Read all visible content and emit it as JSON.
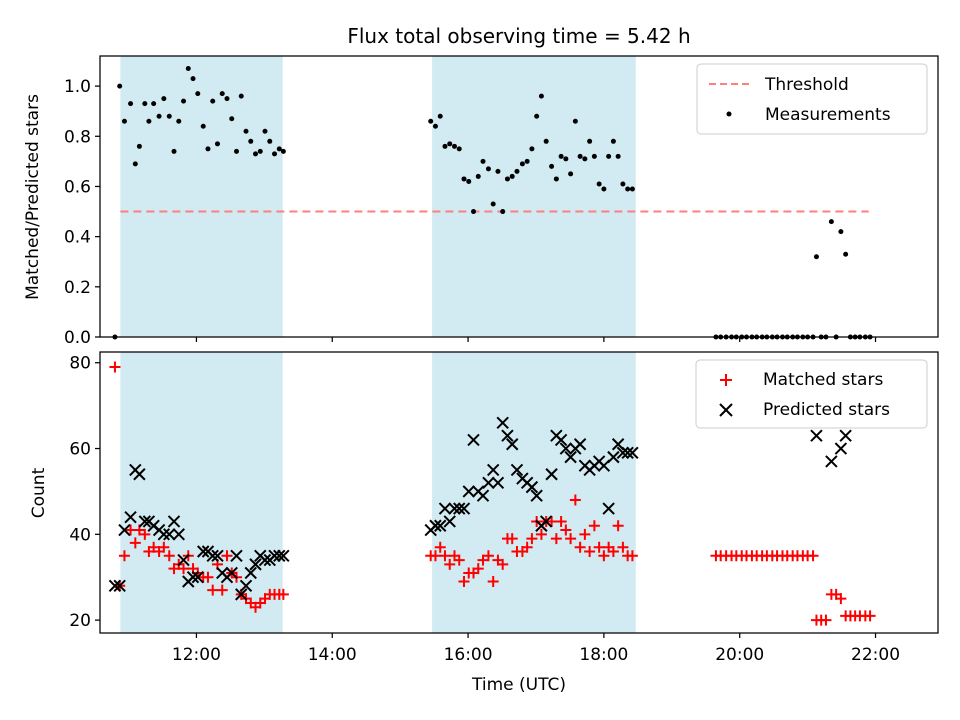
{
  "figure": {
    "title": "Flux total observing time = 5.42 h"
  },
  "chart_data": [
    {
      "type": "scatter",
      "panel": "top",
      "title": "Flux total observing time = 5.42 h",
      "xlabel": "",
      "ylabel": "Matched/Predicted stars",
      "xlim_hours": [
        10.58,
        22.92
      ],
      "ylim": [
        0,
        1.12
      ],
      "yticks": [
        0.0,
        0.2,
        0.4,
        0.6,
        0.8,
        1.0
      ],
      "ytick_labels": [
        "0.0",
        "0.2",
        "0.4",
        "0.6",
        "0.8",
        "1.0"
      ],
      "xticks_hours": [
        12,
        14,
        16,
        18,
        20,
        22
      ],
      "shaded_intervals_hours": [
        [
          10.88,
          13.27
        ],
        [
          15.47,
          18.47
        ]
      ],
      "shade_color": "#add8e6",
      "grid": false,
      "legend": {
        "placement": "top-right",
        "entries": [
          "Threshold",
          "Measurements"
        ]
      },
      "threshold": {
        "name": "Threshold",
        "y": 0.5,
        "x_range_hours": [
          10.88,
          21.9
        ],
        "color": "#ff7f7f",
        "style": "dashed"
      },
      "series": [
        {
          "name": "Measurements",
          "color": "#000000",
          "marker": "dot",
          "x_hours": [
            10.8,
            10.87,
            10.94,
            11.03,
            11.1,
            11.16,
            11.24,
            11.3,
            11.37,
            11.45,
            11.52,
            11.6,
            11.67,
            11.74,
            11.81,
            11.88,
            11.95,
            12.02,
            12.1,
            12.17,
            12.24,
            12.31,
            12.38,
            12.45,
            12.52,
            12.59,
            12.66,
            12.73,
            12.8,
            12.87,
            12.94,
            13.01,
            13.08,
            13.15,
            13.22,
            13.28,
            15.45,
            15.52,
            15.59,
            15.66,
            15.73,
            15.8,
            15.87,
            15.94,
            16.01,
            16.08,
            16.15,
            16.22,
            16.3,
            16.37,
            16.44,
            16.51,
            16.58,
            16.65,
            16.72,
            16.8,
            16.87,
            16.94,
            17.01,
            17.08,
            17.15,
            17.23,
            17.3,
            17.37,
            17.44,
            17.51,
            17.58,
            17.65,
            17.72,
            17.79,
            17.86,
            17.93,
            18.0,
            18.07,
            18.14,
            18.21,
            18.28,
            18.35,
            18.42,
            19.65,
            19.72,
            19.8,
            19.88,
            19.95,
            20.03,
            20.1,
            20.18,
            20.25,
            20.33,
            20.4,
            20.48,
            20.55,
            20.63,
            20.7,
            20.78,
            20.85,
            20.93,
            21.0,
            21.08,
            21.13,
            21.2,
            21.27,
            21.35,
            21.42,
            21.49,
            21.56,
            21.63,
            21.7,
            21.77,
            21.85,
            21.92
          ],
          "y": [
            0.0,
            1.0,
            0.86,
            0.93,
            0.69,
            0.76,
            0.93,
            0.86,
            0.93,
            0.88,
            0.95,
            0.88,
            0.74,
            0.86,
            0.94,
            1.07,
            1.03,
            0.97,
            0.84,
            0.75,
            0.94,
            0.77,
            0.97,
            0.95,
            0.87,
            0.74,
            0.96,
            0.82,
            0.78,
            0.73,
            0.74,
            0.82,
            0.78,
            0.73,
            0.75,
            0.74,
            0.86,
            0.84,
            0.88,
            0.76,
            0.77,
            0.76,
            0.75,
            0.63,
            0.62,
            0.5,
            0.64,
            0.7,
            0.67,
            0.53,
            0.66,
            0.5,
            0.63,
            0.64,
            0.66,
            0.69,
            0.7,
            0.75,
            0.88,
            0.96,
            0.78,
            0.68,
            0.63,
            0.72,
            0.71,
            0.65,
            0.86,
            0.72,
            0.71,
            0.78,
            0.72,
            0.61,
            0.59,
            0.72,
            0.78,
            0.72,
            0.61,
            0.59,
            0.59,
            0.0,
            0.0,
            0.0,
            0.0,
            0.0,
            0.0,
            0.0,
            0.0,
            0.0,
            0.0,
            0.0,
            0.0,
            0.0,
            0.0,
            0.0,
            0.0,
            0.0,
            0.0,
            0.0,
            0.0,
            0.32,
            0.0,
            0.0,
            0.46,
            0.0,
            0.42,
            0.33,
            0.0,
            0.0,
            0.0,
            0.0,
            0.0
          ]
        }
      ]
    },
    {
      "type": "scatter",
      "panel": "bottom",
      "title": "",
      "xlabel": "Time (UTC)",
      "ylabel": "Count",
      "xlim_hours": [
        10.58,
        22.92
      ],
      "ylim": [
        17,
        82.5
      ],
      "yticks": [
        20,
        40,
        60,
        80
      ],
      "ytick_labels": [
        "20",
        "40",
        "60",
        "80"
      ],
      "xticks_hours": [
        12,
        14,
        16,
        18,
        20,
        22
      ],
      "xtick_labels": [
        "12:00",
        "14:00",
        "16:00",
        "18:00",
        "20:00",
        "22:00"
      ],
      "shaded_intervals_hours": [
        [
          10.88,
          13.27
        ],
        [
          15.47,
          18.47
        ]
      ],
      "shade_color": "#add8e6",
      "grid": false,
      "legend": {
        "placement": "top-right",
        "entries": [
          "Matched stars",
          "Predicted stars"
        ]
      },
      "series": [
        {
          "name": "Matched stars",
          "color": "#ff0000",
          "marker": "plus",
          "x_hours": [
            10.8,
            10.87,
            10.94,
            11.03,
            11.1,
            11.16,
            11.24,
            11.3,
            11.37,
            11.45,
            11.52,
            11.6,
            11.67,
            11.74,
            11.81,
            11.88,
            11.95,
            12.02,
            12.1,
            12.17,
            12.24,
            12.31,
            12.38,
            12.45,
            12.52,
            12.59,
            12.66,
            12.73,
            12.8,
            12.87,
            12.94,
            13.01,
            13.08,
            13.15,
            13.22,
            13.28,
            15.45,
            15.52,
            15.59,
            15.66,
            15.73,
            15.8,
            15.87,
            15.94,
            16.01,
            16.08,
            16.15,
            16.22,
            16.3,
            16.37,
            16.44,
            16.51,
            16.58,
            16.65,
            16.72,
            16.8,
            16.87,
            16.94,
            17.01,
            17.08,
            17.15,
            17.23,
            17.3,
            17.37,
            17.44,
            17.51,
            17.58,
            17.65,
            17.72,
            17.79,
            17.86,
            17.93,
            18.0,
            18.07,
            18.14,
            18.21,
            18.28,
            18.35,
            18.42,
            19.65,
            19.72,
            19.8,
            19.88,
            19.95,
            20.03,
            20.1,
            20.18,
            20.25,
            20.33,
            20.4,
            20.48,
            20.55,
            20.63,
            20.7,
            20.78,
            20.85,
            20.93,
            21.0,
            21.08,
            21.13,
            21.2,
            21.27,
            21.35,
            21.42,
            21.49,
            21.56,
            21.63,
            21.7,
            21.77,
            21.85,
            21.92
          ],
          "y": [
            79,
            28,
            35,
            41,
            38,
            41,
            40,
            36,
            37,
            36,
            37,
            35,
            32,
            33,
            32,
            35,
            32,
            31,
            30,
            30,
            27,
            33,
            27,
            35,
            31,
            30,
            26,
            25,
            24,
            23,
            24,
            25,
            26,
            26,
            26,
            26,
            35,
            35,
            37,
            35,
            33,
            35,
            34,
            29,
            31,
            31,
            32,
            34,
            35,
            29,
            34,
            33,
            39,
            39,
            36,
            36,
            37,
            39,
            43,
            40,
            43,
            43,
            39,
            43,
            41,
            39,
            48,
            37,
            40,
            36,
            42,
            37,
            35,
            37,
            36,
            42,
            37,
            35,
            35,
            35,
            35,
            35,
            35,
            35,
            35,
            35,
            35,
            35,
            35,
            35,
            35,
            35,
            35,
            35,
            35,
            35,
            35,
            35,
            35,
            20,
            20,
            20,
            26,
            26,
            25,
            21,
            21,
            21,
            21,
            21,
            21
          ]
        },
        {
          "name": "Predicted stars",
          "color": "#000000",
          "marker": "x",
          "x_hours": [
            10.8,
            10.87,
            10.94,
            11.03,
            11.1,
            11.16,
            11.24,
            11.3,
            11.37,
            11.45,
            11.52,
            11.6,
            11.67,
            11.74,
            11.81,
            11.88,
            11.95,
            12.02,
            12.1,
            12.17,
            12.24,
            12.31,
            12.38,
            12.45,
            12.52,
            12.59,
            12.66,
            12.73,
            12.8,
            12.87,
            12.94,
            13.01,
            13.08,
            13.15,
            13.22,
            13.28,
            15.45,
            15.52,
            15.59,
            15.66,
            15.73,
            15.8,
            15.87,
            15.94,
            16.01,
            16.08,
            16.15,
            16.22,
            16.3,
            16.37,
            16.44,
            16.51,
            16.58,
            16.65,
            16.72,
            16.8,
            16.87,
            16.94,
            17.01,
            17.08,
            17.15,
            17.23,
            17.3,
            17.37,
            17.44,
            17.51,
            17.58,
            17.65,
            17.72,
            17.79,
            17.86,
            17.93,
            18.0,
            18.07,
            18.14,
            18.21,
            18.28,
            18.35,
            18.42,
            21.13,
            21.35,
            21.49,
            21.56
          ],
          "y": [
            28,
            28,
            41,
            44,
            55,
            54,
            43,
            43,
            42,
            41,
            40,
            40,
            43,
            40,
            34,
            29,
            30,
            30,
            36,
            36,
            35,
            35,
            31,
            30,
            31,
            35,
            26,
            28,
            31,
            33,
            35,
            34,
            34,
            35,
            35,
            35,
            41,
            42,
            42,
            46,
            43,
            46,
            46,
            46,
            50,
            62,
            50,
            49,
            52,
            55,
            52,
            66,
            63,
            61,
            55,
            53,
            52,
            51,
            49,
            42,
            43,
            54,
            63,
            62,
            60,
            58,
            60,
            61,
            56,
            55,
            56,
            57,
            56,
            46,
            58,
            61,
            59,
            59,
            59,
            63,
            57,
            60,
            63
          ]
        }
      ]
    }
  ]
}
